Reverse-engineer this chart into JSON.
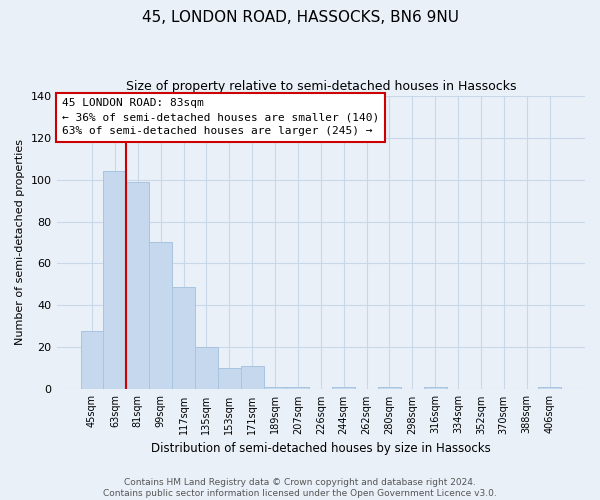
{
  "title": "45, LONDON ROAD, HASSOCKS, BN6 9NU",
  "subtitle": "Size of property relative to semi-detached houses in Hassocks",
  "xlabel": "Distribution of semi-detached houses by size in Hassocks",
  "ylabel": "Number of semi-detached properties",
  "footer_line1": "Contains HM Land Registry data © Crown copyright and database right 2024.",
  "footer_line2": "Contains public sector information licensed under the Open Government Licence v3.0.",
  "bin_labels": [
    "45sqm",
    "63sqm",
    "81sqm",
    "99sqm",
    "117sqm",
    "135sqm",
    "153sqm",
    "171sqm",
    "189sqm",
    "207sqm",
    "226sqm",
    "244sqm",
    "262sqm",
    "280sqm",
    "298sqm",
    "316sqm",
    "334sqm",
    "352sqm",
    "370sqm",
    "388sqm",
    "406sqm"
  ],
  "bar_values": [
    28,
    104,
    99,
    70,
    49,
    20,
    10,
    11,
    1,
    1,
    0,
    1,
    0,
    1,
    0,
    1,
    0,
    0,
    0,
    0,
    1
  ],
  "bar_color": "#c5d8ed",
  "bar_edge_color": "#a8c4de",
  "ylim": [
    0,
    140
  ],
  "yticks": [
    0,
    20,
    40,
    60,
    80,
    100,
    120,
    140
  ],
  "property_line_x": 1.5,
  "annotation_title": "45 LONDON ROAD: 83sqm",
  "annotation_line1": "← 36% of semi-detached houses are smaller (140)",
  "annotation_line2": "63% of semi-detached houses are larger (245) →",
  "annotation_box_color": "#ffffff",
  "annotation_box_edge_color": "#cc0000",
  "property_line_color": "#cc0000",
  "background_color": "#eaf0f8",
  "grid_color": "#c8d8e8"
}
